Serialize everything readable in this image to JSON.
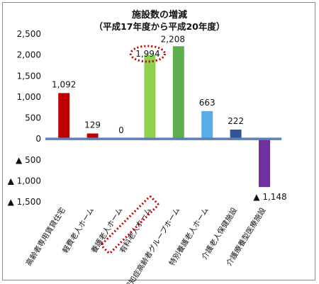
{
  "chart_data": {
    "type": "bar",
    "title": "施設数の増減",
    "subtitle": "（平成17年度から平成20年度）",
    "categories": [
      "高齢者専用賃貸住宅",
      "軽費老人ホーム",
      "養護老人ホーム",
      "有料老人ホーム",
      "認知症高齢者グループホーム",
      "特別養護老人ホーム",
      "介護老人保健施設",
      "介護療養型医療施設"
    ],
    "values": [
      1092,
      129,
      0,
      1994,
      2208,
      663,
      222,
      -1148
    ],
    "data_labels": [
      "1,092",
      "129",
      "0",
      "1,994",
      "2,208",
      "663",
      "222",
      "▲ 1,148"
    ],
    "bar_colors": [
      "#c00000",
      "#c00000",
      "#c00000",
      "#92d050",
      "#5fae4e",
      "#5aaee8",
      "#2f5597",
      "#7030a0"
    ],
    "ylim": [
      -1500,
      2500
    ],
    "yticks": [
      2500,
      2000,
      1500,
      1000,
      500,
      0,
      -500,
      -1000,
      -1500
    ],
    "ytick_labels": [
      "2,500",
      "2,000",
      "1,500",
      "1,000",
      "500",
      "0",
      "▲ 500",
      "▲ 1,000",
      "▲ 1,500"
    ],
    "highlighted_category_index": 3,
    "highlight_color": "#c00000",
    "axis_color": "#5b7fb8",
    "grid": false,
    "legend": "none"
  }
}
